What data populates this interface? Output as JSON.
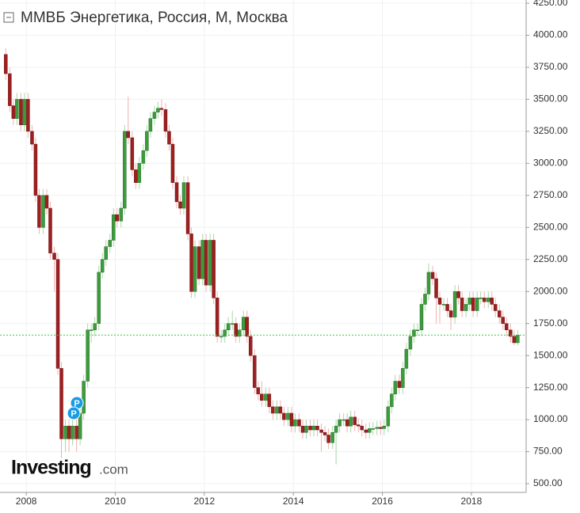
{
  "chart_data": {
    "type": "candlestick",
    "title": "ММВБ Энергетика, Россия, М, Москва",
    "x": [
      2007.54,
      2007.63,
      2007.71,
      2007.79,
      2007.88,
      2007.96,
      2008.04,
      2008.13,
      2008.21,
      2008.29,
      2008.38,
      2008.46,
      2008.54,
      2008.63,
      2008.71,
      2008.79,
      2008.88,
      2008.96,
      2009.04,
      2009.13,
      2009.21,
      2009.29,
      2009.38,
      2009.46,
      2009.54,
      2009.63,
      2009.71,
      2009.79,
      2009.88,
      2009.96,
      2010.04,
      2010.13,
      2010.21,
      2010.29,
      2010.38,
      2010.46,
      2010.54,
      2010.63,
      2010.71,
      2010.79,
      2010.88,
      2010.96,
      2011.04,
      2011.13,
      2011.21,
      2011.29,
      2011.38,
      2011.46,
      2011.54,
      2011.63,
      2011.71,
      2011.79,
      2011.88,
      2011.96,
      2012.04,
      2012.13,
      2012.21,
      2012.29,
      2012.38,
      2012.46,
      2012.54,
      2012.63,
      2012.71,
      2012.79,
      2012.88,
      2012.96,
      2013.04,
      2013.13,
      2013.21,
      2013.29,
      2013.38,
      2013.46,
      2013.54,
      2013.63,
      2013.71,
      2013.79,
      2013.88,
      2013.96,
      2014.04,
      2014.13,
      2014.21,
      2014.29,
      2014.38,
      2014.46,
      2014.54,
      2014.63,
      2014.71,
      2014.79,
      2014.88,
      2014.96,
      2015.04,
      2015.13,
      2015.21,
      2015.29,
      2015.38,
      2015.46,
      2015.54,
      2015.63,
      2015.71,
      2015.79,
      2015.88,
      2015.96,
      2016.04,
      2016.13,
      2016.21,
      2016.29,
      2016.38,
      2016.46,
      2016.54,
      2016.63,
      2016.71,
      2016.79,
      2016.88,
      2016.96,
      2017.04,
      2017.13,
      2017.21,
      2017.29,
      2017.38,
      2017.46,
      2017.54,
      2017.63,
      2017.71,
      2017.79,
      2017.88,
      2017.96,
      2018.04,
      2018.13,
      2018.21,
      2018.29,
      2018.38,
      2018.46,
      2018.54,
      2018.63,
      2018.71,
      2018.79,
      2018.88,
      2018.96,
      2019.04
    ],
    "open": [
      3850,
      3700,
      3450,
      3350,
      3500,
      3300,
      3500,
      3250,
      3150,
      2750,
      2500,
      2750,
      2650,
      2300,
      2250,
      1400,
      850,
      950,
      850,
      950,
      850,
      1050,
      1300,
      1700,
      1700,
      1750,
      2150,
      2250,
      2350,
      2400,
      2600,
      2550,
      2650,
      3250,
      3200,
      2950,
      2850,
      3000,
      3100,
      3250,
      3350,
      3400,
      3430,
      3420,
      3250,
      3150,
      2850,
      2700,
      2650,
      2850,
      2450,
      2000,
      2350,
      2100,
      2400,
      2050,
      2400,
      1950,
      1650,
      1650,
      1700,
      1750,
      1750,
      1650,
      1700,
      1800,
      1650,
      1500,
      1250,
      1200,
      1150,
      1200,
      1100,
      1050,
      1100,
      1050,
      1000,
      1050,
      950,
      1000,
      950,
      900,
      950,
      920,
      950,
      920,
      900,
      880,
      820,
      900,
      950,
      1000,
      1000,
      950,
      1020,
      960,
      950,
      920,
      900,
      930,
      930,
      940,
      930,
      950,
      1100,
      1200,
      1300,
      1250,
      1400,
      1550,
      1650,
      1700,
      1700,
      1900,
      1980,
      2150,
      2100,
      1950,
      1900,
      1900,
      1850,
      1800,
      2000,
      1950,
      1850,
      1900,
      1950,
      1850,
      1950,
      1950,
      1920,
      1950,
      1900,
      1850,
      1800,
      1750,
      1700,
      1650,
      1600
    ],
    "high": [
      3900,
      3750,
      3500,
      3550,
      3550,
      3550,
      3550,
      3300,
      3200,
      2800,
      2800,
      2800,
      2700,
      2350,
      2300,
      1450,
      1000,
      1000,
      1000,
      1000,
      1100,
      1350,
      1750,
      1750,
      1800,
      2200,
      2300,
      2400,
      2450,
      2650,
      2650,
      2700,
      3300,
      3520,
      3250,
      3000,
      3050,
      3150,
      3300,
      3400,
      3450,
      3480,
      3500,
      3470,
      3300,
      3200,
      2900,
      2750,
      2900,
      2900,
      2500,
      2400,
      2400,
      2450,
      2450,
      2450,
      2450,
      2000,
      1700,
      1750,
      1800,
      1850,
      1800,
      1750,
      1850,
      1850,
      1700,
      1550,
      1300,
      1300,
      1250,
      1250,
      1150,
      1150,
      1150,
      1100,
      1100,
      1100,
      1050,
      1050,
      1000,
      1000,
      1000,
      1000,
      1000,
      970,
      950,
      930,
      950,
      1000,
      1050,
      1050,
      1050,
      1070,
      1070,
      1010,
      1000,
      970,
      980,
      980,
      990,
      990,
      1000,
      1150,
      1250,
      1350,
      1350,
      1450,
      1600,
      1700,
      1750,
      1750,
      1950,
      2030,
      2220,
      2200,
      2150,
      2000,
      1950,
      1950,
      1900,
      2050,
      2050,
      2000,
      1950,
      2000,
      2000,
      2000,
      2000,
      2000,
      2000,
      2000,
      1950,
      1900,
      1850,
      1800,
      1750,
      1700,
      1700
    ],
    "low": [
      3650,
      3400,
      3300,
      3300,
      3250,
      3250,
      3200,
      3100,
      2700,
      2450,
      2450,
      2600,
      2250,
      2000,
      1350,
      700,
      750,
      750,
      800,
      750,
      800,
      1000,
      1250,
      1600,
      1650,
      1700,
      2100,
      2200,
      2300,
      2350,
      2500,
      2500,
      2600,
      3150,
      2900,
      2800,
      2800,
      2950,
      3050,
      3200,
      3300,
      3350,
      3370,
      3200,
      3100,
      2800,
      2650,
      2600,
      2600,
      2400,
      1950,
      1950,
      2050,
      2050,
      2000,
      2000,
      1900,
      1600,
      1600,
      1600,
      1650,
      1700,
      1600,
      1600,
      1650,
      1600,
      1450,
      1200,
      1150,
      1100,
      1100,
      1050,
      1000,
      1000,
      1000,
      950,
      950,
      900,
      900,
      900,
      850,
      850,
      870,
      870,
      870,
      750,
      830,
      770,
      770,
      650,
      900,
      950,
      900,
      900,
      910,
      900,
      870,
      850,
      850,
      880,
      880,
      880,
      880,
      900,
      1050,
      1150,
      1200,
      1200,
      1350,
      1500,
      1600,
      1650,
      1650,
      1850,
      1930,
      2050,
      1750,
      1750,
      1850,
      1800,
      1700,
      1750,
      1900,
      1800,
      1800,
      1850,
      1800,
      1800,
      1900,
      1870,
      1870,
      1850,
      1800,
      1750,
      1700,
      1650,
      1600,
      1580,
      1580
    ],
    "close": [
      3700,
      3450,
      3350,
      3500,
      3300,
      3500,
      3250,
      3150,
      2750,
      2500,
      2750,
      2650,
      2300,
      2250,
      1400,
      850,
      950,
      850,
      950,
      850,
      1050,
      1300,
      1700,
      1700,
      1750,
      2150,
      2250,
      2350,
      2400,
      2600,
      2550,
      2650,
      3250,
      3200,
      2950,
      2850,
      3000,
      3100,
      3250,
      3350,
      3400,
      3430,
      3420,
      3250,
      3150,
      2850,
      2700,
      2650,
      2850,
      2450,
      2000,
      2350,
      2100,
      2400,
      2050,
      2400,
      1950,
      1650,
      1650,
      1700,
      1750,
      1750,
      1650,
      1700,
      1800,
      1650,
      1500,
      1250,
      1200,
      1150,
      1200,
      1100,
      1050,
      1100,
      1050,
      1000,
      1050,
      950,
      1000,
      950,
      900,
      950,
      920,
      950,
      920,
      900,
      880,
      820,
      900,
      950,
      1000,
      1000,
      950,
      1020,
      960,
      950,
      920,
      900,
      930,
      930,
      940,
      930,
      950,
      1100,
      1200,
      1300,
      1250,
      1400,
      1550,
      1650,
      1700,
      1700,
      1900,
      1980,
      2150,
      2100,
      1950,
      1900,
      1900,
      1850,
      1800,
      2000,
      1950,
      1850,
      1900,
      1950,
      1850,
      1950,
      1950,
      1920,
      1950,
      1900,
      1850,
      1800,
      1750,
      1700,
      1650,
      1600,
      1660
    ],
    "up_color": "#3c9c3c",
    "down_color": "#9e1f1f",
    "xlim": [
      2007.41,
      2019.23
    ],
    "xticks": [
      2008,
      2010,
      2012,
      2014,
      2016,
      2018
    ],
    "ylim": [
      432,
      4275
    ],
    "yticks": [
      {
        "value": 500,
        "label": "500.00"
      },
      {
        "value": 750,
        "label": "750.00"
      },
      {
        "value": 1000,
        "label": "1000.00"
      },
      {
        "value": 1250,
        "label": "1250.00"
      },
      {
        "value": 1500,
        "label": "1500.00"
      },
      {
        "value": 1750,
        "label": "1750.00"
      },
      {
        "value": 2000,
        "label": "2000.00"
      },
      {
        "value": 2250,
        "label": "2250.00"
      },
      {
        "value": 2500,
        "label": "2500.00"
      },
      {
        "value": 2750,
        "label": "2750.00"
      },
      {
        "value": 3000,
        "label": "3000.00"
      },
      {
        "value": 3250,
        "label": "3250.00"
      },
      {
        "value": 3500,
        "label": "3500.00"
      },
      {
        "value": 3750,
        "label": "3750.00"
      },
      {
        "value": 4000,
        "label": "4000.00"
      },
      {
        "value": 4250,
        "label": "4250.00"
      }
    ],
    "grid": true
  },
  "logo": {
    "name": "Investing",
    "suffix": ".com"
  }
}
